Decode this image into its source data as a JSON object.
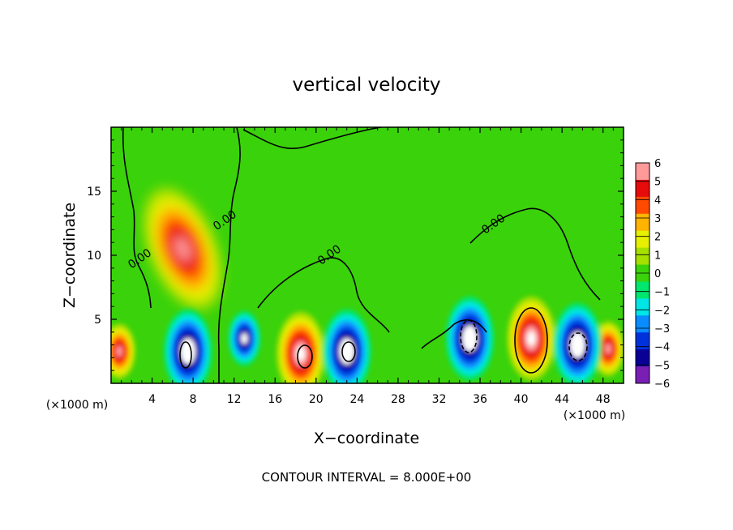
{
  "chart_data": {
    "type": "heatmap",
    "title": "vertical velocity",
    "xlabel": "X−coordinate",
    "ylabel": "Z−coordinate",
    "x_unit_label": "(×1000 m)",
    "x_unit_label_right": "(×1000 m)",
    "xlim": [
      0,
      50
    ],
    "ylim": [
      0,
      20
    ],
    "x_ticks": [
      "4",
      "8",
      "12",
      "16",
      "20",
      "24",
      "28",
      "32",
      "36",
      "40",
      "44",
      "48"
    ],
    "y_ticks": [
      "5",
      "10",
      "15"
    ],
    "colorbar": {
      "range": [
        -6,
        6
      ],
      "labels": [
        "6",
        "5",
        "4",
        "3",
        "2",
        "1",
        "0",
        "−1",
        "−2",
        "−3",
        "−4",
        "−5",
        "−6"
      ]
    },
    "contour_labels": [
      {
        "text": "0.00",
        "x": 3,
        "z": 9.5
      },
      {
        "text": "0.00",
        "x": 11.3,
        "z": 12.5
      },
      {
        "text": "0.00",
        "x": 21.5,
        "z": 9.8
      },
      {
        "text": "0.00",
        "x": 37.5,
        "z": 12.2
      }
    ],
    "features": [
      {
        "sign": "positive",
        "x": 7.0,
        "z": 10.5,
        "peak": 4.5
      },
      {
        "sign": "positive",
        "x": 0.8,
        "z": 2.5,
        "peak": 4.5
      },
      {
        "sign": "positive",
        "x": 18.5,
        "z": 2.3,
        "peak": 6
      },
      {
        "sign": "positive",
        "x": 41.0,
        "z": 3.5,
        "peak": 6
      },
      {
        "sign": "positive",
        "x": 48.5,
        "z": 2.7,
        "peak": 4.5
      },
      {
        "sign": "negative",
        "x": 7.5,
        "z": 2.5,
        "peak": -6
      },
      {
        "sign": "negative",
        "x": 23.0,
        "z": 2.5,
        "peak": -6
      },
      {
        "sign": "negative",
        "x": 13.0,
        "z": 3.5,
        "peak": -5
      },
      {
        "sign": "negative",
        "x": 35.0,
        "z": 3.5,
        "peak": -6
      },
      {
        "sign": "negative",
        "x": 45.5,
        "z": 3.0,
        "peak": -6
      }
    ],
    "annotation": "CONTOUR INTERVAL = 8.000E+00"
  }
}
